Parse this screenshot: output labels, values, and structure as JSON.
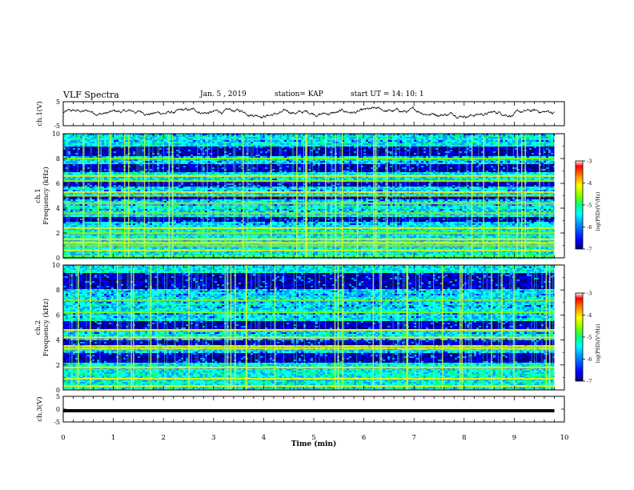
{
  "header": {
    "title": "VLF Spectra",
    "date": "Jan. 5 , 2019",
    "station": "station= KAP",
    "start": "start UT =  14: 10: 1"
  },
  "chart_data": {
    "type": "heatmap",
    "title": "VLF Spectra",
    "xlabel": "Time (min)",
    "xlim": [
      0,
      10
    ],
    "xticks": [
      0,
      1,
      2,
      3,
      4,
      5,
      6,
      7,
      8,
      9,
      10
    ],
    "data_end_min": 9.8,
    "panels": [
      {
        "id": "ch1-waveform",
        "type": "line",
        "ylabel": "ch.1(V)",
        "ylim": [
          -5,
          5
        ],
        "yticks": [
          "5",
          "-5"
        ],
        "description_values": {
          "mean": 0.5,
          "amplitude": 3
        }
      },
      {
        "id": "ch1-spectrogram",
        "type": "heatmap",
        "ylabel_line1": "ch.1",
        "ylabel_line2": "Frequency (kHz)",
        "ylim": [
          0,
          10
        ],
        "yticks": [
          "0",
          "2",
          "4",
          "6",
          "8",
          "10"
        ],
        "strong_bands_khz": [
          0.15,
          0.6,
          1.0,
          1.2,
          1.5,
          2.0,
          2.4,
          3.6,
          4.4,
          5.0,
          5.3,
          6.2,
          6.6,
          8.0
        ],
        "quiet_bands_khz": [
          [
            3.0,
            3.4
          ],
          [
            4.8,
            5.0
          ],
          [
            5.8,
            6.2
          ],
          [
            7.0,
            7.6
          ],
          [
            8.2,
            9.0
          ]
        ]
      },
      {
        "id": "ch2-spectrogram",
        "type": "heatmap",
        "ylabel_line1": "ch.2",
        "ylabel_line2": "Frequency (kHz)",
        "ylim": [
          0,
          10
        ],
        "yticks": [
          "0",
          "2",
          "4",
          "6",
          "8",
          "10"
        ],
        "strong_bands_khz": [
          0.3,
          0.9,
          1.8,
          3.3,
          3.5,
          4.2,
          4.8,
          6.2,
          7.2
        ],
        "quiet_bands_khz": [
          [
            2.2,
            3.0
          ],
          [
            3.7,
            4.0
          ],
          [
            5.0,
            5.6
          ],
          [
            8.2,
            9.4
          ]
        ]
      },
      {
        "id": "ch3-waveform",
        "type": "line",
        "ylabel": "ch.3(V)",
        "ylim": [
          -5,
          5
        ],
        "yticks": [
          "5",
          "0",
          "-5"
        ],
        "constant_value": 0
      }
    ],
    "colorbar": {
      "label": "log(PSD)(V²/Hz)",
      "range": [
        -7,
        -3
      ],
      "ticks": [
        "-3",
        "-4",
        "-5",
        "-6",
        "-7"
      ],
      "colormap": [
        "#000080",
        "#0000ff",
        "#00a0ff",
        "#00ffff",
        "#00ff80",
        "#80ff00",
        "#ffff00",
        "#ff8000",
        "#ff0000",
        "#ffffff"
      ]
    }
  }
}
